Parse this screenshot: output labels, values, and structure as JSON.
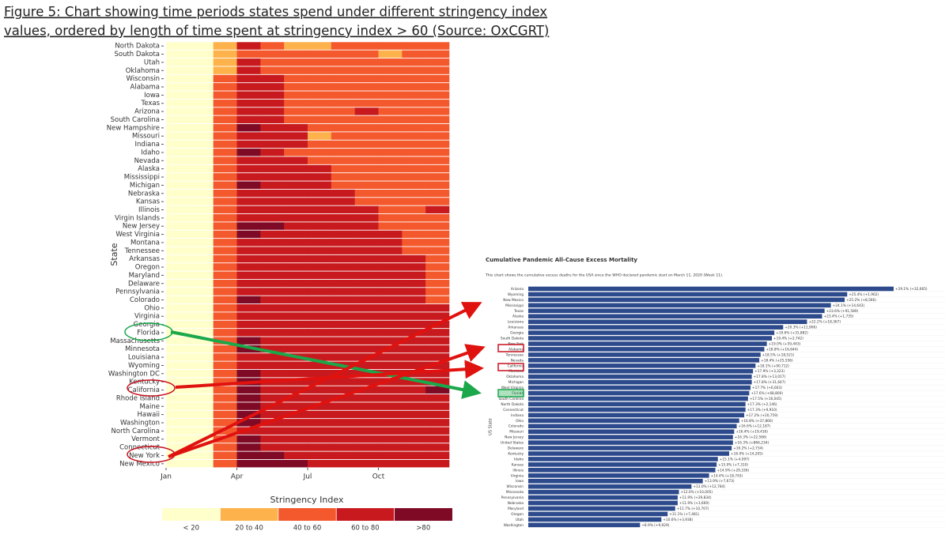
{
  "caption": [
    "Figure 5: Chart showing time periods states spend under different stringency index",
    "values, ordered by length of time spent at stringency index > 60 (Source: OxCGRT)"
  ],
  "chart_data": [
    {
      "type": "heatmap",
      "y_label": "State",
      "categories": [
        "Jan",
        null,
        null,
        "Apr",
        null,
        null,
        "Jul",
        null,
        null,
        "Oct",
        null,
        null
      ],
      "rows": [
        "North Dakota",
        "South Dakota",
        "Utah",
        "Oklahoma",
        "Wisconsin",
        "Alabama",
        "Iowa",
        "Texas",
        "Arizona",
        "South Carolina",
        "New Hampshire",
        "Missouri",
        "Indiana",
        "Idaho",
        "Nevada",
        "Alaska",
        "Mississippi",
        "Michigan",
        "Nebraska",
        "Kansas",
        "Illinois",
        "Virgin Islands",
        "New Jersey",
        "West Virginia",
        "Montana",
        "Tennessee",
        "Arkansas",
        "Oregon",
        "Maryland",
        "Delaware",
        "Pennsylvania",
        "Colorado",
        "Ohio",
        "Virginia",
        "Georgia",
        "Florida",
        "Massachusetts",
        "Minnesota",
        "Louisiana",
        "Wyoming",
        "Washington DC",
        "Kentucky",
        "California",
        "Rhode Island",
        "Maine",
        "Hawaii",
        "Washington",
        "North Carolina",
        "Vermont",
        "Connecticut",
        "New York",
        "New Mexico"
      ],
      "values": [
        [
          8,
          8,
          35,
          65,
          55,
          30,
          30,
          50,
          50,
          50,
          50,
          50
        ],
        [
          8,
          8,
          30,
          50,
          45,
          45,
          45,
          45,
          45,
          30,
          50,
          45
        ],
        [
          8,
          8,
          35,
          65,
          55,
          50,
          50,
          50,
          50,
          50,
          50,
          50
        ],
        [
          8,
          8,
          35,
          70,
          55,
          50,
          50,
          50,
          50,
          50,
          50,
          50
        ],
        [
          8,
          8,
          40,
          70,
          60,
          50,
          50,
          50,
          50,
          50,
          50,
          50
        ],
        [
          8,
          8,
          40,
          70,
          65,
          50,
          50,
          50,
          50,
          50,
          50,
          50
        ],
        [
          8,
          8,
          40,
          70,
          65,
          50,
          50,
          50,
          50,
          50,
          50,
          50
        ],
        [
          8,
          8,
          40,
          70,
          65,
          50,
          50,
          50,
          50,
          50,
          50,
          50
        ],
        [
          8,
          8,
          40,
          70,
          65,
          50,
          50,
          50,
          65,
          50,
          50,
          50
        ],
        [
          8,
          8,
          40,
          75,
          65,
          50,
          50,
          50,
          50,
          50,
          50,
          50
        ],
        [
          8,
          8,
          40,
          85,
          75,
          65,
          50,
          50,
          50,
          50,
          50,
          50
        ],
        [
          8,
          8,
          40,
          70,
          70,
          60,
          30,
          50,
          50,
          50,
          50,
          50
        ],
        [
          8,
          8,
          40,
          75,
          70,
          60,
          50,
          50,
          50,
          50,
          50,
          50
        ],
        [
          8,
          8,
          40,
          85,
          70,
          50,
          50,
          50,
          50,
          50,
          50,
          50
        ],
        [
          8,
          8,
          40,
          75,
          70,
          65,
          50,
          50,
          50,
          50,
          50,
          50
        ],
        [
          8,
          8,
          40,
          75,
          70,
          65,
          65,
          50,
          50,
          50,
          50,
          50
        ],
        [
          8,
          8,
          40,
          75,
          65,
          65,
          65,
          50,
          50,
          50,
          50,
          50
        ],
        [
          8,
          8,
          40,
          80,
          70,
          65,
          65,
          50,
          50,
          50,
          50,
          50
        ],
        [
          8,
          8,
          40,
          70,
          65,
          65,
          65,
          65,
          50,
          50,
          50,
          50
        ],
        [
          8,
          8,
          40,
          75,
          65,
          65,
          65,
          65,
          50,
          50,
          50,
          50
        ],
        [
          8,
          8,
          40,
          75,
          70,
          65,
          65,
          65,
          65,
          50,
          50,
          65
        ],
        [
          8,
          8,
          40,
          75,
          70,
          65,
          65,
          65,
          65,
          50,
          50,
          50
        ],
        [
          8,
          8,
          40,
          80,
          85,
          65,
          65,
          65,
          65,
          50,
          50,
          50
        ],
        [
          8,
          8,
          40,
          85,
          70,
          65,
          65,
          65,
          65,
          65,
          50,
          50
        ],
        [
          8,
          8,
          40,
          70,
          65,
          65,
          65,
          65,
          65,
          65,
          50,
          50
        ],
        [
          8,
          8,
          40,
          70,
          65,
          65,
          65,
          65,
          65,
          65,
          50,
          50
        ],
        [
          8,
          8,
          40,
          70,
          65,
          65,
          65,
          65,
          65,
          65,
          65,
          50
        ],
        [
          8,
          8,
          40,
          70,
          65,
          65,
          65,
          65,
          65,
          65,
          65,
          50
        ],
        [
          8,
          8,
          40,
          70,
          65,
          65,
          65,
          65,
          65,
          65,
          65,
          50
        ],
        [
          8,
          8,
          40,
          75,
          70,
          65,
          65,
          65,
          65,
          65,
          65,
          50
        ],
        [
          8,
          8,
          40,
          75,
          70,
          65,
          65,
          65,
          65,
          65,
          65,
          50
        ],
        [
          8,
          8,
          40,
          85,
          65,
          65,
          65,
          65,
          65,
          65,
          65,
          50
        ],
        [
          8,
          8,
          40,
          75,
          65,
          65,
          65,
          65,
          65,
          65,
          65,
          65
        ],
        [
          8,
          8,
          40,
          75,
          70,
          65,
          65,
          65,
          65,
          65,
          65,
          65
        ],
        [
          8,
          8,
          40,
          75,
          65,
          65,
          65,
          65,
          65,
          65,
          65,
          65
        ],
        [
          8,
          8,
          40,
          75,
          65,
          65,
          65,
          65,
          65,
          65,
          65,
          65
        ],
        [
          8,
          8,
          40,
          85,
          75,
          65,
          65,
          65,
          65,
          65,
          65,
          65
        ],
        [
          8,
          8,
          40,
          85,
          75,
          65,
          65,
          65,
          65,
          65,
          65,
          65
        ],
        [
          8,
          8,
          40,
          75,
          70,
          65,
          65,
          65,
          65,
          65,
          65,
          65
        ],
        [
          8,
          8,
          40,
          75,
          70,
          65,
          65,
          65,
          65,
          65,
          65,
          65
        ],
        [
          8,
          8,
          40,
          85,
          75,
          65,
          65,
          65,
          65,
          65,
          65,
          65
        ],
        [
          8,
          8,
          40,
          85,
          70,
          65,
          65,
          65,
          65,
          65,
          65,
          65
        ],
        [
          8,
          8,
          40,
          85,
          75,
          70,
          70,
          70,
          70,
          70,
          70,
          85
        ],
        [
          8,
          8,
          40,
          85,
          75,
          70,
          70,
          70,
          70,
          70,
          70,
          70
        ],
        [
          8,
          8,
          40,
          85,
          75,
          70,
          70,
          70,
          70,
          70,
          70,
          70
        ],
        [
          8,
          8,
          40,
          85,
          75,
          70,
          70,
          70,
          70,
          70,
          70,
          70
        ],
        [
          8,
          8,
          40,
          85,
          75,
          70,
          70,
          70,
          70,
          70,
          70,
          70
        ],
        [
          8,
          8,
          40,
          75,
          75,
          70,
          70,
          70,
          70,
          70,
          70,
          70
        ],
        [
          8,
          8,
          40,
          85,
          75,
          70,
          70,
          70,
          70,
          70,
          70,
          70
        ],
        [
          8,
          8,
          40,
          85,
          75,
          70,
          70,
          70,
          70,
          70,
          70,
          70
        ],
        [
          8,
          8,
          40,
          90,
          85,
          75,
          70,
          70,
          70,
          70,
          70,
          70
        ],
        [
          8,
          8,
          40,
          90,
          85,
          85,
          75,
          75,
          75,
          75,
          75,
          75
        ]
      ],
      "legend": {
        "title": "Stringency Index",
        "thresholds": [
          20,
          40,
          60,
          80
        ],
        "labels": [
          "< 20",
          "20 to 40",
          "40 to 60",
          "60 to 80",
          ">80"
        ],
        "colors": [
          "#ffffcc",
          "#feb24c",
          "#f4592e",
          "#c81a1e",
          "#7f0a26"
        ]
      }
    },
    {
      "type": "hbar",
      "title": "Cumulative Pandemic All-Cause Excess Mortality",
      "subtitle": "This chart shows the cumulative excess deaths for the USA since the WHO declared pandemic start on March 11, 2020 (Week 11).",
      "y_label": "US State",
      "color": "#2c4a8c",
      "categories": [
        "Arizona",
        "Wyoming",
        "New Mexico",
        "Mississippi",
        "Texas",
        "Alaska",
        "Louisiana",
        "Arkansas",
        "Georgia",
        "South Dakota",
        "New York",
        "Alabama",
        "Tennessee",
        "Nevada",
        "California",
        "Montana",
        "Oklahoma",
        "Michigan",
        "West Virginia",
        "Florida",
        "South Carolina",
        "North Dakota",
        "Connecticut",
        "Indiana",
        "Ohio",
        "Colorado",
        "Missouri",
        "New Jersey",
        "United States",
        "Delaware",
        "Kentucky",
        "Idaho",
        "Kansas",
        "Illinois",
        "Virginia",
        "Iowa",
        "Wisconsin",
        "Minnesota",
        "Pennsylvania",
        "Nebraska",
        "Maryland",
        "Oregon",
        "Utah",
        "Washington"
      ],
      "values": [
        29.1,
        25.4,
        25.2,
        24.1,
        23.6,
        23.4,
        22.2,
        20.3,
        19.6,
        19.4,
        19.0,
        18.8,
        18.5,
        18.4,
        18.1,
        17.9,
        17.8,
        17.8,
        17.7,
        17.6,
        17.5,
        17.3,
        17.3,
        17.2,
        16.8,
        16.6,
        16.4,
        16.3,
        16.3,
        16.2,
        16.0,
        15.1,
        15.0,
        14.9,
        14.4,
        13.9,
        13.0,
        12.0,
        11.9,
        11.9,
        11.7,
        11.1,
        10.6,
        8.9
      ],
      "value_labels": [
        "+29.1% (+32,665)",
        "+25.4% (+1,962)",
        "+25.2% (+8,566)",
        "+24.1% (+14,643)",
        "+23.6% (+91,589)",
        "+23.4% (+1,735)",
        "+22.2% (+18,367)",
        "+20.3% (+11,906)",
        "+19.6% (+31,882)",
        "+19.4% (+2,742)",
        "+19.0% (+59,443)",
        "+18.8% (+16,644)",
        "+18.5% (+18,521)",
        "+18.4% (+25,556)",
        "+18.1% (+90,712)",
        "+17.9% (+3,323)",
        "+17.8% (+13,017)",
        "+17.8% (+31,647)",
        "+17.7% (+6,603)",
        "+17.6% (+68,800)",
        "+17.5% (+16,045)",
        "+17.3% (+2,146)",
        "+17.3% (+9,910)",
        "+17.2% (+20,759)",
        "+16.8% (+37,866)",
        "+16.6% (+12,187)",
        "+16.4% (+19,416)",
        "+16.3% (+22,566)",
        "+16.3% (+866,234)",
        "+16.2% (+2,734)",
        "+16.0% (+14,205)",
        "+15.1% (+4,097)",
        "+15.0% (+7,310)",
        "+14.9% (+29,336)",
        "+14.4% (+18,743)",
        "+13.9% (+7,673)",
        "+13.0% (+12,784)",
        "+12.0% (+10,005)",
        "+11.9% (+29,834)",
        "+11.9% (+3,669)",
        "+11.7% (+10,707)",
        "+11.1% (+7,481)",
        "+10.6% (+3,938)",
        "+8.9% (+9,929)"
      ]
    }
  ]
}
